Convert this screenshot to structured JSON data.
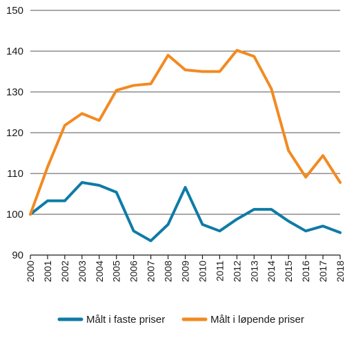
{
  "chart_data": {
    "type": "line",
    "title": "",
    "xlabel": "",
    "ylabel": "",
    "ylim": [
      90,
      150
    ],
    "yticks": [
      90,
      100,
      110,
      120,
      130,
      140,
      150
    ],
    "grid": "horizontal",
    "legend_position": "bottom",
    "categories": [
      "2000",
      "2001",
      "2002",
      "2003",
      "2004",
      "2005",
      "2006",
      "2007",
      "2008",
      "2009",
      "2010",
      "2011",
      "2012",
      "2013",
      "2014",
      "2015",
      "2016",
      "2017",
      "2018"
    ],
    "series": [
      {
        "name": "Målt i faste priser",
        "color": "#0e7ba6",
        "values": [
          100,
          103.3,
          103.3,
          107.8,
          107.1,
          105.4,
          95.9,
          93.5,
          97.5,
          106.6,
          97.5,
          95.9,
          98.8,
          101.2,
          101.2,
          98.3,
          95.9,
          97.1,
          95.5
        ]
      },
      {
        "name": "Målt i løpende priser",
        "color": "#f28a21",
        "values": [
          100,
          111.6,
          121.8,
          124.7,
          123.0,
          130.4,
          131.6,
          132.0,
          139.0,
          135.4,
          135.0,
          135.0,
          140.2,
          138.7,
          130.8,
          115.6,
          109.1,
          114.4,
          107.8
        ]
      }
    ]
  }
}
